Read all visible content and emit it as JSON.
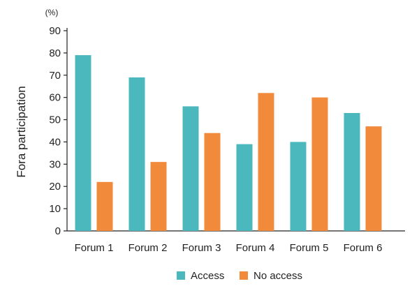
{
  "chart_data": {
    "type": "bar",
    "ylabel": "Fora participation",
    "yunit": "(%)",
    "ylim": [
      0,
      90
    ],
    "yticks": [
      0,
      10,
      20,
      30,
      40,
      50,
      60,
      70,
      80,
      90
    ],
    "categories": [
      "Forum 1",
      "Forum 2",
      "Forum 3",
      "Forum 4",
      "Forum 5",
      "Forum 6"
    ],
    "series": [
      {
        "name": "Access",
        "color": "#4bb8bd",
        "values": [
          79,
          69,
          56,
          39,
          40,
          53
        ]
      },
      {
        "name": "No access",
        "color": "#f28a3c",
        "values": [
          22,
          31,
          44,
          62,
          60,
          47
        ]
      }
    ],
    "legend_position": "bottom-center",
    "grid": false
  }
}
